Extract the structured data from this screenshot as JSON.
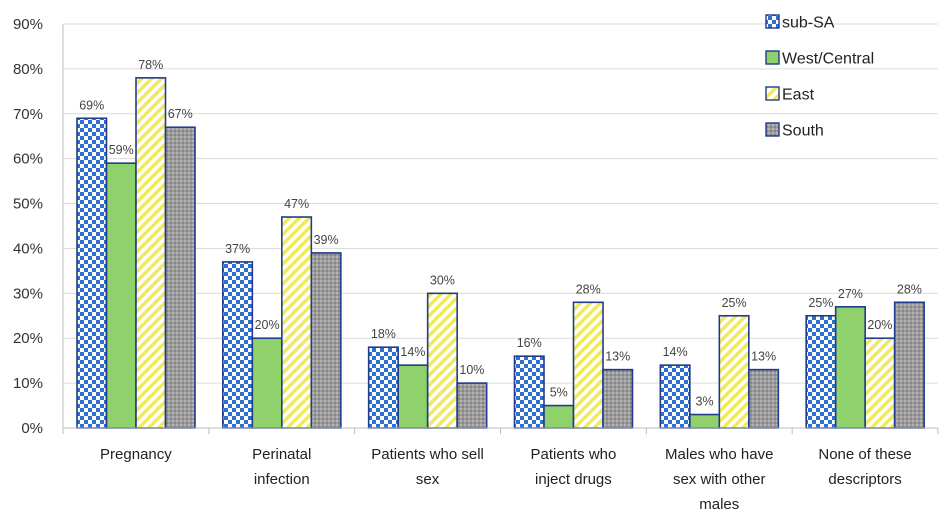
{
  "chart_data": {
    "type": "bar",
    "categories": [
      [
        "Pregnancy"
      ],
      [
        "Perinatal",
        "infection"
      ],
      [
        "Patients who sell",
        "sex"
      ],
      [
        "Patients who",
        "inject drugs"
      ],
      [
        "Males who have",
        "sex with other",
        "males"
      ],
      [
        "None of these",
        "descriptors"
      ]
    ],
    "series": [
      {
        "name": "sub-SA",
        "values": [
          69,
          37,
          18,
          16,
          14,
          25
        ],
        "labels": [
          "69%",
          "37%",
          "18%",
          "16%",
          "14%",
          "25%"
        ],
        "pattern": "checker",
        "color": "#2f6fce"
      },
      {
        "name": "West/Central",
        "values": [
          59,
          20,
          14,
          5,
          3,
          27
        ],
        "labels": [
          "59%",
          "20%",
          "14%",
          "5%",
          "3%",
          "27%"
        ],
        "pattern": "solid",
        "color": "#8fd16a"
      },
      {
        "name": "East",
        "values": [
          78,
          47,
          30,
          28,
          25,
          20
        ],
        "labels": [
          "78%",
          "47%",
          "30%",
          "28%",
          "25%",
          "20%"
        ],
        "pattern": "diagonal",
        "color": "#f2ea5c"
      },
      {
        "name": "South",
        "values": [
          67,
          39,
          10,
          13,
          13,
          28
        ],
        "labels": [
          "67%",
          "39%",
          "10%",
          "13%",
          "13%",
          "28%"
        ],
        "pattern": "dots",
        "color": "#8a8a8a"
      }
    ],
    "yticks": [
      "0%",
      "10%",
      "20%",
      "30%",
      "40%",
      "50%",
      "60%",
      "70%",
      "80%",
      "90%"
    ],
    "ylim": [
      0,
      90
    ],
    "grid": true,
    "legend_position": "top-right",
    "outline_color": "#1f3c8f"
  }
}
